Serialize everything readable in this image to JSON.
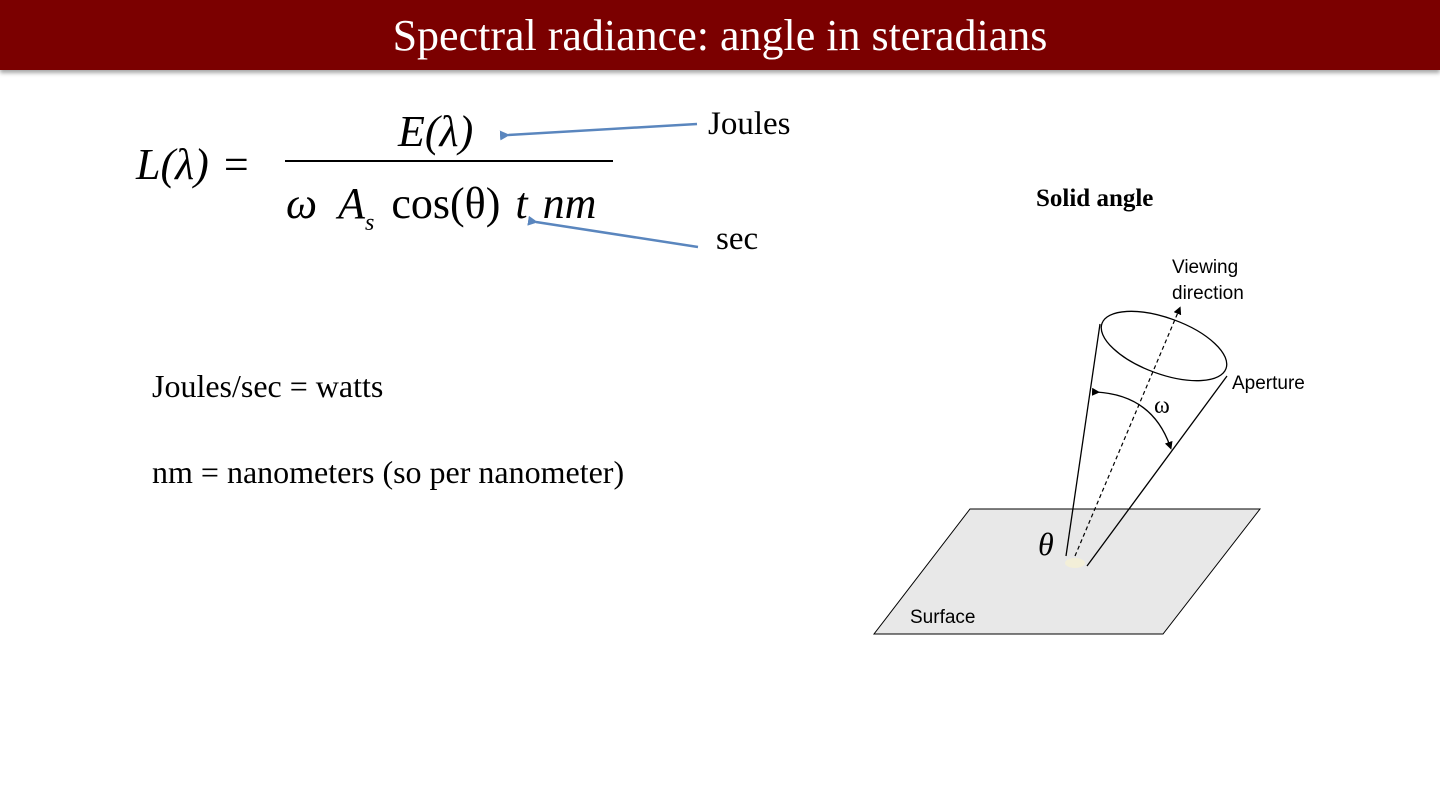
{
  "title": "Spectral radiance: angle in steradians",
  "equation": {
    "lhs": "L(λ)",
    "equals": "=",
    "numerator": "E(λ)",
    "den_omega": "ω",
    "den_A": "A",
    "den_A_sub": "s",
    "den_cos": "cos(θ)",
    "den_t": "t",
    "den_nm": "nm"
  },
  "annotations": {
    "joules": "Joules",
    "sec": "sec"
  },
  "notes": [
    "Joules/sec = watts",
    "nm = nanometers (so per nanometer)"
  ],
  "diagram": {
    "title": "Solid angle",
    "viewing_line1": "Viewing",
    "viewing_line2": "direction",
    "aperture": "Aperture",
    "omega": "ω",
    "theta": "θ",
    "surface": "Surface"
  },
  "colors": {
    "title_bar": "#7b0000",
    "arrow": "#5a86be",
    "surface_fill": "#e8e8e8"
  }
}
